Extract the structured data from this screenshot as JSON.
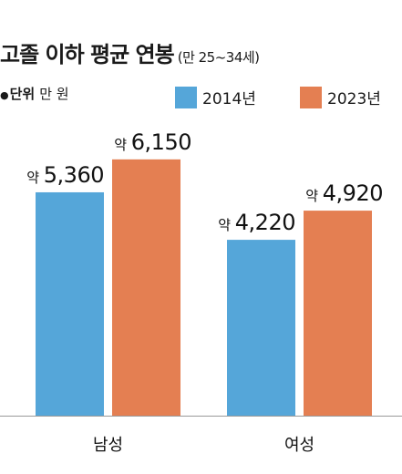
{
  "title": "고졸 이하 평균 연봉",
  "subtitle": "(만 25~34세)",
  "unit_label": "단위",
  "unit_value": "만 원",
  "chart_data": {
    "type": "bar",
    "categories": [
      "남성",
      "여성"
    ],
    "series": [
      {
        "name": "2014년",
        "color": "#55a6d9",
        "values": [
          5360,
          4220
        ],
        "labels": [
          "약 5,360",
          "약 4,220"
        ]
      },
      {
        "name": "2023년",
        "color": "#e47f52",
        "values": [
          6150,
          4920
        ],
        "labels": [
          "약 6,150",
          "약 4,920"
        ]
      }
    ],
    "ylim": [
      0,
      7000
    ],
    "grid": false,
    "legend_position": "top-right",
    "baseline_color": "#999999"
  }
}
